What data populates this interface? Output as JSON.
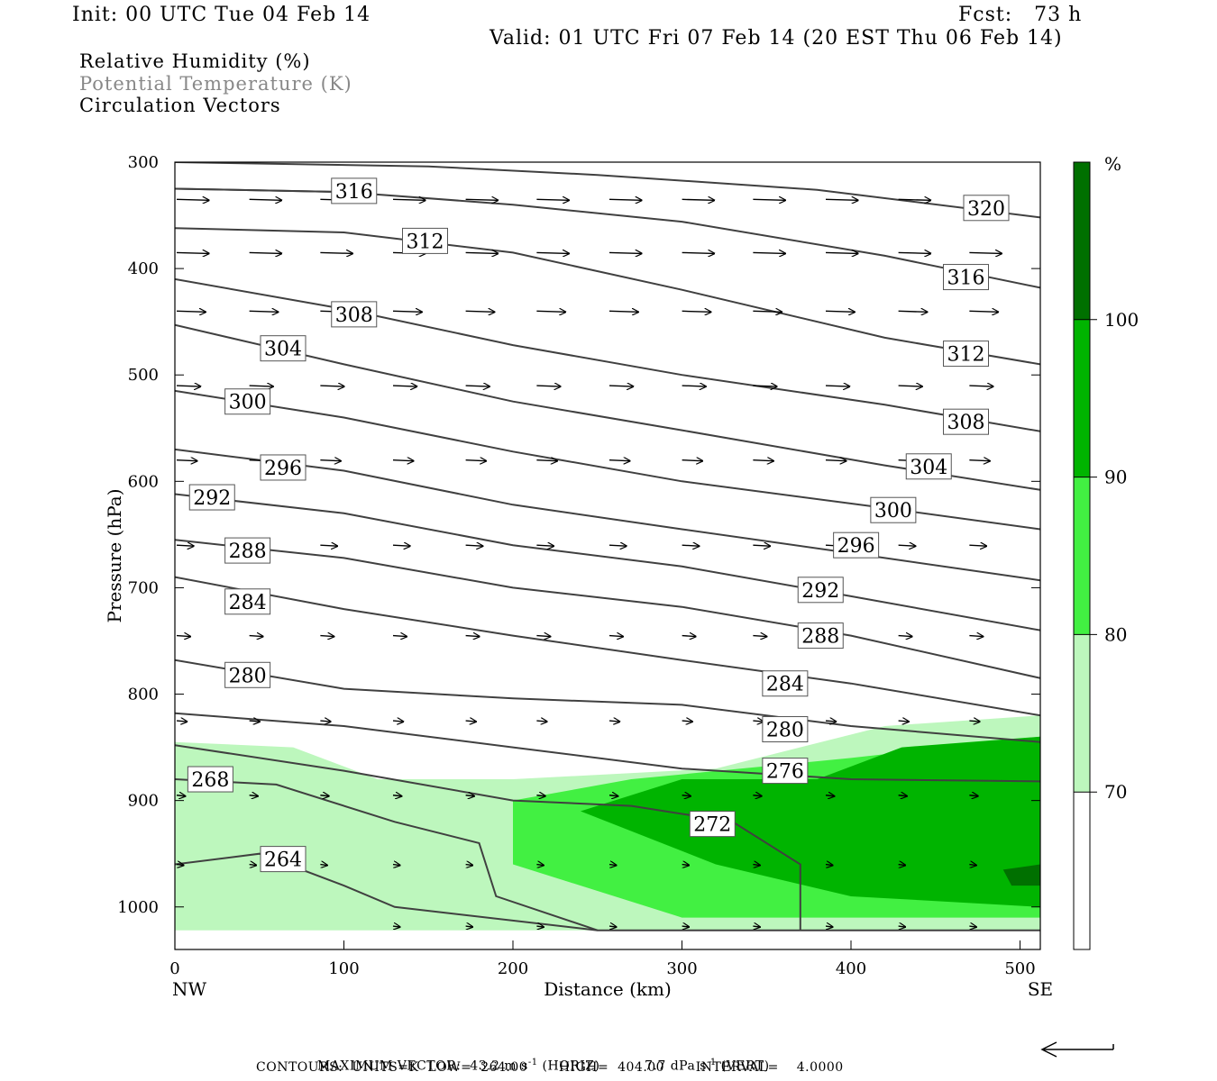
{
  "header": {
    "init": "Init: 00 UTC Tue 04 Feb 14",
    "fcst": "Fcst:   73 h",
    "valid": "Valid: 01 UTC Fri 07 Feb 14 (20 EST Thu 06 Feb 14)"
  },
  "legend": {
    "line1": "Relative Humidity (%)",
    "line2": "Potential Temperature (K)",
    "line3": "Circulation Vectors"
  },
  "colors": {
    "rh70": "#bdf7bd",
    "rh80": "#42f042",
    "rh90": "#00b400",
    "rh100": "#007000",
    "theta": "#404040",
    "legend_gray": "#888888"
  },
  "chart_data": {
    "type": "contour",
    "xlabel": "Distance (km)",
    "ylabel": "Pressure (hPa)",
    "xlim": [
      0,
      512
    ],
    "ylim": [
      1040,
      300
    ],
    "x_ticks": [
      0,
      100,
      200,
      300,
      400,
      500
    ],
    "y_ticks": [
      300,
      400,
      500,
      600,
      700,
      800,
      900,
      1000
    ],
    "x_end_labels": {
      "left": "NW",
      "right": "SE"
    },
    "colorbar": {
      "unit_label": "%",
      "levels": [
        70,
        80,
        90,
        100
      ],
      "colors": [
        "#ffffff",
        "#bdf7bd",
        "#42f042",
        "#00b400",
        "#007000"
      ]
    },
    "theta_contours": [
      {
        "label": "320",
        "points": [
          [
            0,
            300
          ],
          [
            150,
            304
          ],
          [
            250,
            312
          ],
          [
            380,
            326
          ],
          [
            512,
            352
          ]
        ],
        "label_at": [
          480,
          343
        ]
      },
      {
        "label": "316",
        "points": [
          [
            0,
            325
          ],
          [
            100,
            328
          ],
          [
            200,
            340
          ],
          [
            300,
            356
          ],
          [
            420,
            388
          ],
          [
            512,
            418
          ]
        ],
        "label_at": [
          468,
          408
        ]
      },
      {
        "label": "316",
        "points": [
          [
            0,
            325
          ],
          [
            100,
            328
          ]
        ],
        "label_at": [
          106,
          327
        ]
      },
      {
        "label": "312",
        "points": [
          [
            0,
            362
          ],
          [
            100,
            366
          ],
          [
            200,
            385
          ],
          [
            300,
            420
          ],
          [
            420,
            465
          ],
          [
            512,
            490
          ]
        ],
        "label_at": [
          148,
          374
        ]
      },
      {
        "label": "312",
        "points": [
          [
            0,
            362
          ]
        ],
        "label_at": [
          468,
          480
        ]
      },
      {
        "label": "308",
        "points": [
          [
            0,
            410
          ],
          [
            100,
            438
          ],
          [
            200,
            472
          ],
          [
            300,
            500
          ],
          [
            420,
            528
          ],
          [
            512,
            553
          ]
        ],
        "label_at": [
          106,
          443
        ]
      },
      {
        "label": "308",
        "points": [
          [
            0,
            410
          ]
        ],
        "label_at": [
          468,
          544
        ]
      },
      {
        "label": "304",
        "points": [
          [
            0,
            453
          ],
          [
            100,
            490
          ],
          [
            200,
            525
          ],
          [
            300,
            552
          ],
          [
            420,
            585
          ],
          [
            512,
            608
          ]
        ],
        "label_at": [
          64,
          475
        ]
      },
      {
        "label": "304",
        "points": [
          [
            0,
            453
          ]
        ],
        "label_at": [
          446,
          586
        ]
      },
      {
        "label": "300",
        "points": [
          [
            0,
            515
          ],
          [
            100,
            540
          ],
          [
            200,
            572
          ],
          [
            300,
            600
          ],
          [
            420,
            625
          ],
          [
            512,
            645
          ]
        ],
        "label_at": [
          43,
          525
        ]
      },
      {
        "label": "300",
        "points": [
          [
            0,
            515
          ]
        ],
        "label_at": [
          425,
          627
        ]
      },
      {
        "label": "296",
        "points": [
          [
            0,
            570
          ],
          [
            100,
            590
          ],
          [
            200,
            622
          ],
          [
            300,
            645
          ],
          [
            420,
            672
          ],
          [
            512,
            693
          ]
        ],
        "label_at": [
          64,
          587
        ]
      },
      {
        "label": "296",
        "points": [
          [
            0,
            570
          ]
        ],
        "label_at": [
          403,
          660
        ]
      },
      {
        "label": "292",
        "points": [
          [
            0,
            612
          ],
          [
            100,
            630
          ],
          [
            200,
            660
          ],
          [
            300,
            680
          ],
          [
            400,
            708
          ],
          [
            512,
            740
          ]
        ],
        "label_at": [
          22,
          615
        ]
      },
      {
        "label": "292",
        "points": [
          [
            0,
            612
          ]
        ],
        "label_at": [
          382,
          702
        ]
      },
      {
        "label": "288",
        "points": [
          [
            0,
            655
          ],
          [
            100,
            672
          ],
          [
            200,
            700
          ],
          [
            300,
            718
          ],
          [
            400,
            745
          ],
          [
            512,
            785
          ]
        ],
        "label_at": [
          43,
          665
        ]
      },
      {
        "label": "288",
        "points": [
          [
            0,
            655
          ]
        ],
        "label_at": [
          382,
          745
        ]
      },
      {
        "label": "284",
        "points": [
          [
            0,
            690
          ],
          [
            100,
            720
          ],
          [
            200,
            745
          ],
          [
            300,
            768
          ],
          [
            400,
            790
          ],
          [
            512,
            820
          ]
        ],
        "label_at": [
          43,
          713
        ]
      },
      {
        "label": "284",
        "points": [
          [
            0,
            690
          ]
        ],
        "label_at": [
          361,
          790
        ]
      },
      {
        "label": "280",
        "points": [
          [
            0,
            768
          ],
          [
            100,
            795
          ],
          [
            200,
            804
          ],
          [
            300,
            810
          ],
          [
            400,
            830
          ],
          [
            512,
            845
          ]
        ],
        "label_at": [
          43,
          782
        ]
      },
      {
        "label": "280",
        "points": [
          [
            0,
            768
          ]
        ],
        "label_at": [
          361,
          833
        ]
      },
      {
        "label": "276",
        "points": [
          [
            0,
            818
          ],
          [
            100,
            830
          ],
          [
            200,
            850
          ],
          [
            300,
            870
          ],
          [
            400,
            880
          ],
          [
            512,
            882
          ]
        ],
        "label_at": [
          361,
          872
        ]
      },
      {
        "label": "272",
        "points": [
          [
            0,
            848
          ],
          [
            100,
            872
          ],
          [
            200,
            900
          ],
          [
            270,
            905
          ],
          [
            330,
            920
          ],
          [
            370,
            960
          ],
          [
            370,
            1022
          ]
        ],
        "label_at": [
          318,
          922
        ]
      },
      {
        "label": "268",
        "points": [
          [
            0,
            880
          ],
          [
            60,
            885
          ],
          [
            130,
            920
          ],
          [
            180,
            940
          ],
          [
            190,
            990
          ],
          [
            250,
            1022
          ]
        ],
        "label_at": [
          21,
          880
        ]
      },
      {
        "label": "264",
        "points": [
          [
            0,
            960
          ],
          [
            50,
            950
          ],
          [
            100,
            980
          ],
          [
            130,
            1000
          ],
          [
            250,
            1022
          ],
          [
            512,
            1022
          ]
        ],
        "label_at": [
          64,
          955
        ]
      }
    ],
    "rh_regions": [
      {
        "level": 70,
        "outline": [
          [
            0,
            845
          ],
          [
            70,
            850
          ],
          [
            120,
            880
          ],
          [
            200,
            880
          ],
          [
            320,
            870
          ],
          [
            420,
            830
          ],
          [
            512,
            820
          ],
          [
            512,
            1022
          ],
          [
            0,
            1022
          ]
        ]
      },
      {
        "level": 80,
        "outline": [
          [
            200,
            900
          ],
          [
            270,
            880
          ],
          [
            400,
            860
          ],
          [
            512,
            840
          ],
          [
            512,
            1010
          ],
          [
            300,
            1010
          ],
          [
            200,
            960
          ]
        ]
      },
      {
        "level": 90,
        "outline": [
          [
            240,
            910
          ],
          [
            300,
            880
          ],
          [
            380,
            880
          ],
          [
            430,
            850
          ],
          [
            512,
            840
          ],
          [
            512,
            1000
          ],
          [
            400,
            990
          ],
          [
            320,
            960
          ]
        ]
      },
      {
        "level": 100,
        "outline": [
          [
            490,
            965
          ],
          [
            512,
            960
          ],
          [
            512,
            980
          ],
          [
            495,
            980
          ]
        ]
      }
    ],
    "vectors": [
      {
        "p": 335,
        "x": [
          0,
          43,
          85,
          128,
          171,
          213,
          256,
          299,
          341,
          384,
          427,
          469
        ],
        "len": 38
      },
      {
        "p": 385,
        "x": [
          0,
          43,
          85,
          128,
          171,
          213,
          256,
          299,
          341,
          384,
          427,
          469
        ],
        "len": 38
      },
      {
        "p": 440,
        "x": [
          0,
          43,
          85,
          128,
          171,
          213,
          256,
          299,
          341,
          384,
          427,
          469
        ],
        "len": 34
      },
      {
        "p": 510,
        "x": [
          0,
          43,
          85,
          128,
          171,
          213,
          256,
          299,
          341,
          384,
          427,
          469
        ],
        "len": 28
      },
      {
        "p": 580,
        "x": [
          0,
          43,
          85,
          128,
          171,
          213,
          256,
          299,
          341,
          384,
          427,
          469
        ],
        "len": 24
      },
      {
        "p": 660,
        "x": [
          0,
          43,
          85,
          128,
          171,
          213,
          256,
          299,
          341,
          384,
          427,
          469
        ],
        "len": 20
      },
      {
        "p": 745,
        "x": [
          0,
          43,
          85,
          128,
          171,
          213,
          256,
          299,
          341,
          384,
          427,
          469
        ],
        "len": 16
      },
      {
        "p": 825,
        "x": [
          0,
          43,
          85,
          128,
          171,
          213,
          256,
          299,
          341,
          384,
          427,
          469
        ],
        "len": 12
      },
      {
        "p": 895,
        "x": [
          0,
          43,
          85,
          128,
          171,
          213,
          256,
          299,
          341,
          384,
          427,
          469
        ],
        "len": 10
      },
      {
        "p": 960,
        "x": [
          0,
          43,
          85,
          128,
          171,
          213,
          256,
          299,
          341,
          384,
          427,
          469
        ],
        "len": 8
      },
      {
        "p": 1018,
        "x": [
          128,
          171,
          213,
          256,
          299,
          341,
          384,
          427,
          469
        ],
        "len": 8
      }
    ]
  },
  "footer": {
    "max_vector_label": "MAXIMUM VECTOR:",
    "horiz_value": "43.2",
    "horiz_unit": "m s",
    "horiz_exp": "-1",
    "horiz_tag": "(HORIZ)",
    "vert_value": "7.7",
    "vert_unit": "dPa s",
    "vert_exp": "-1",
    "vert_tag": "(VERT)",
    "contours": "CONTOURS:  UNITS=K  LOW=  264.00       HIGH=  404.00       INTERVAL=    4.0000"
  }
}
